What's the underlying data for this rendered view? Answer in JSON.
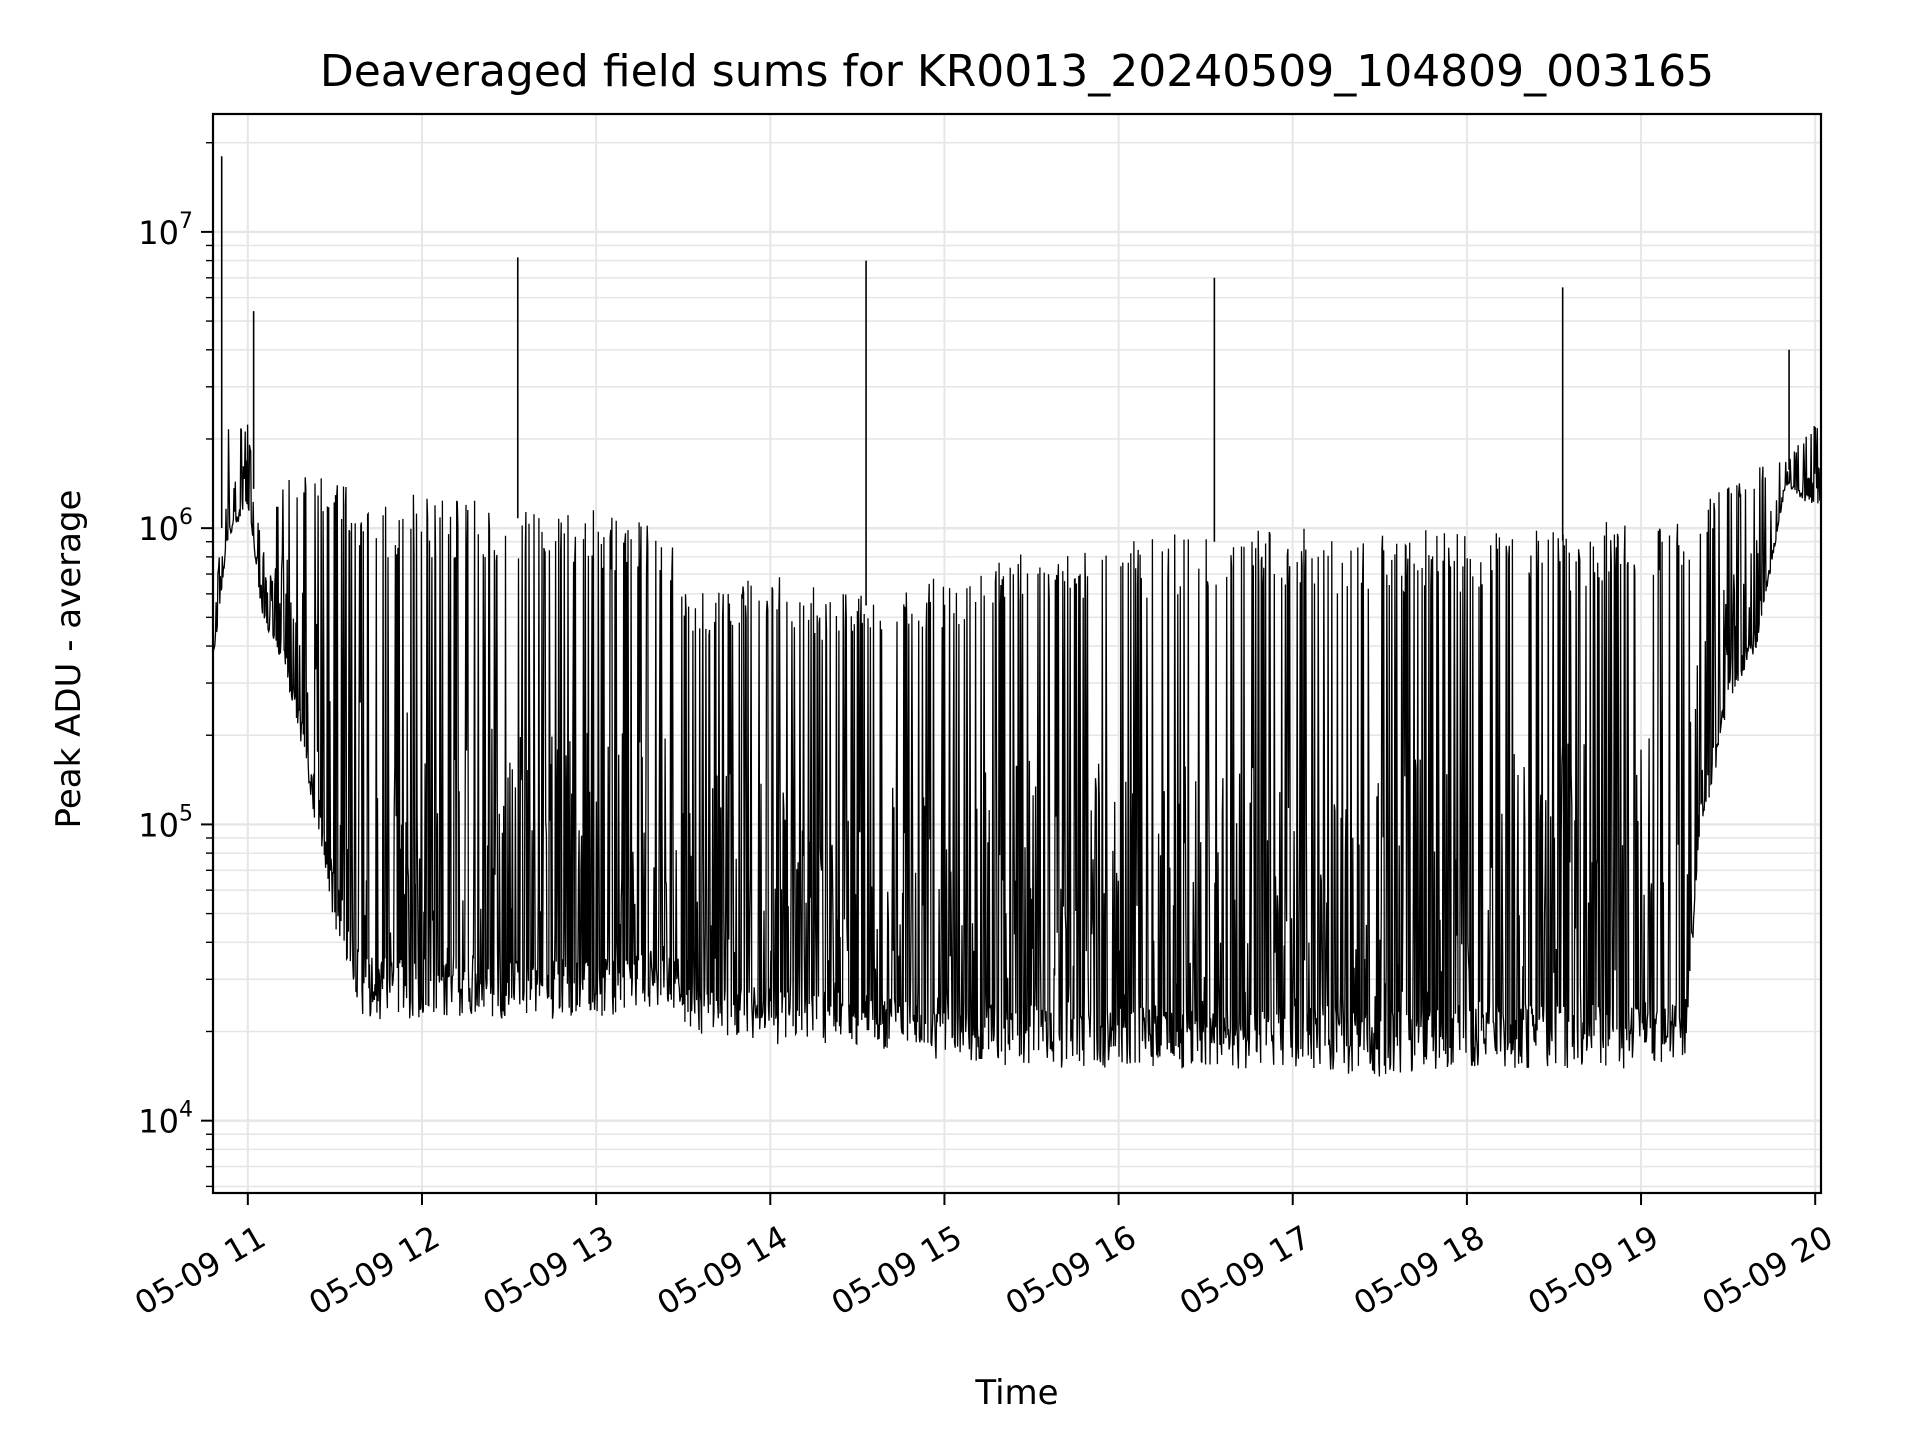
{
  "chart_data": {
    "type": "line",
    "title": "Deaveraged field sums for KR0013_20240509_104809_003165",
    "xlabel": "Time",
    "ylabel": "Peak ADU - average",
    "xlim": [
      "2024-05-09 10:48",
      "2024-05-09 20:02"
    ],
    "ylim": [
      5700,
      25000000
    ],
    "yscale": "log",
    "grid": true,
    "line_color": "#000000",
    "grid_color": "#e6e6e6",
    "x_ticks": [
      {
        "t": "2024-05-09 11:00",
        "label": "05-09 11"
      },
      {
        "t": "2024-05-09 12:00",
        "label": "05-09 12"
      },
      {
        "t": "2024-05-09 13:00",
        "label": "05-09 13"
      },
      {
        "t": "2024-05-09 14:00",
        "label": "05-09 14"
      },
      {
        "t": "2024-05-09 15:00",
        "label": "05-09 15"
      },
      {
        "t": "2024-05-09 16:00",
        "label": "05-09 16"
      },
      {
        "t": "2024-05-09 17:00",
        "label": "05-09 17"
      },
      {
        "t": "2024-05-09 18:00",
        "label": "05-09 18"
      },
      {
        "t": "2024-05-09 19:00",
        "label": "05-09 19"
      },
      {
        "t": "2024-05-09 20:00",
        "label": "05-09 20"
      }
    ],
    "y_ticks": [
      {
        "value": 10000,
        "base": "10",
        "exp": "4"
      },
      {
        "value": 100000,
        "base": "10",
        "exp": "5"
      },
      {
        "value": 1000000,
        "base": "10",
        "exp": "6"
      },
      {
        "value": 10000000,
        "base": "10",
        "exp": "7"
      }
    ],
    "series": [
      {
        "envelope": [
          {
            "t": "2024-05-09 10:48",
            "high": 400000,
            "low": 350000
          },
          {
            "t": "2024-05-09 10:53",
            "high": 2200000,
            "low": 900000
          },
          {
            "t": "2024-05-09 11:00",
            "high": 2300000,
            "low": 1200000
          },
          {
            "t": "2024-05-09 11:05",
            "high": 800000,
            "low": 500000
          },
          {
            "t": "2024-05-09 11:12",
            "high": 1500000,
            "low": 350000
          },
          {
            "t": "2024-05-09 11:20",
            "high": 1600000,
            "low": 150000
          },
          {
            "t": "2024-05-09 11:30",
            "high": 1500000,
            "low": 45000
          },
          {
            "t": "2024-05-09 11:40",
            "high": 1300000,
            "low": 22000
          },
          {
            "t": "2024-05-09 12:00",
            "high": 1300000,
            "low": 22000
          },
          {
            "t": "2024-05-09 12:30",
            "high": 1200000,
            "low": 22000
          },
          {
            "t": "2024-05-09 13:00",
            "high": 1200000,
            "low": 22000
          },
          {
            "t": "2024-05-09 13:25",
            "high": 1000000,
            "low": 25000
          },
          {
            "t": "2024-05-09 13:30",
            "high": 600000,
            "low": 20000
          },
          {
            "t": "2024-05-09 14:00",
            "high": 700000,
            "low": 18000
          },
          {
            "t": "2024-05-09 14:30",
            "high": 600000,
            "low": 18000
          },
          {
            "t": "2024-05-09 15:00",
            "high": 700000,
            "low": 16000
          },
          {
            "t": "2024-05-09 15:30",
            "high": 900000,
            "low": 15000
          },
          {
            "t": "2024-05-09 16:00",
            "high": 900000,
            "low": 15000
          },
          {
            "t": "2024-05-09 16:30",
            "high": 1000000,
            "low": 15000
          },
          {
            "t": "2024-05-09 17:00",
            "high": 1000000,
            "low": 15000
          },
          {
            "t": "2024-05-09 17:30",
            "high": 1000000,
            "low": 14000
          },
          {
            "t": "2024-05-09 18:00",
            "high": 1000000,
            "low": 15000
          },
          {
            "t": "2024-05-09 18:30",
            "high": 1000000,
            "low": 15000
          },
          {
            "t": "2024-05-09 19:00",
            "high": 1100000,
            "low": 15000
          },
          {
            "t": "2024-05-09 19:15",
            "high": 1100000,
            "low": 16000
          },
          {
            "t": "2024-05-09 19:20",
            "high": 1200000,
            "low": 80000
          },
          {
            "t": "2024-05-09 19:30",
            "high": 1400000,
            "low": 250000
          },
          {
            "t": "2024-05-09 19:40",
            "high": 1600000,
            "low": 400000
          },
          {
            "t": "2024-05-09 19:50",
            "high": 1700000,
            "low": 1400000
          },
          {
            "t": "2024-05-09 20:02",
            "high": 2400000,
            "low": 1100000
          }
        ],
        "spikes": [
          {
            "t": "2024-05-09 10:51",
            "value": 18000000
          },
          {
            "t": "2024-05-09 11:02",
            "value": 5400000
          },
          {
            "t": "2024-05-09 12:33",
            "value": 8200000
          },
          {
            "t": "2024-05-09 14:33",
            "value": 8000000
          },
          {
            "t": "2024-05-09 16:33",
            "value": 7000000
          },
          {
            "t": "2024-05-09 18:33",
            "value": 6500000
          },
          {
            "t": "2024-05-09 19:51",
            "value": 4000000
          }
        ]
      }
    ]
  }
}
